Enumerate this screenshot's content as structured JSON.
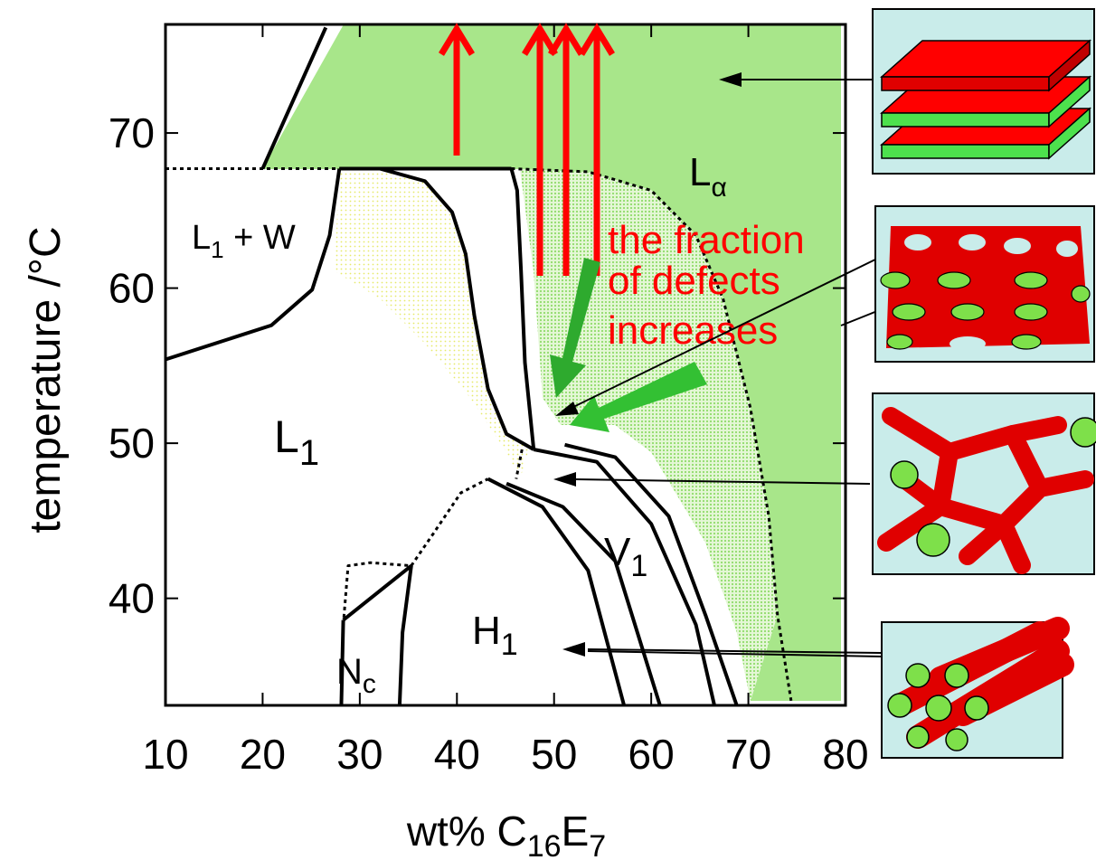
{
  "chart_data": {
    "type": "phase-diagram",
    "xlabel": [
      "wt% C",
      "16",
      "E",
      "7"
    ],
    "ylabel": "temperature /°C",
    "xlim": [
      10,
      80
    ],
    "ylim": [
      33.1,
      77
    ],
    "xticks": [
      10,
      20,
      30,
      40,
      50,
      60,
      70,
      80
    ],
    "yticks": [
      40,
      50,
      60,
      70
    ],
    "regions": [
      [
        "L",
        "1",
        " + W"
      ],
      [
        "L",
        "1"
      ],
      [
        "L",
        "α"
      ],
      [
        "V",
        "1"
      ],
      [
        "H",
        "1"
      ],
      [
        "N",
        "c"
      ]
    ],
    "annotation": [
      "the fraction",
      "of defects",
      "increases"
    ],
    "curves": [
      {
        "style": "dotted",
        "x": [
          10,
          27.9
        ],
        "y": [
          67.7,
          67.7
        ]
      },
      {
        "style": "solid",
        "x": [
          20.0,
          26.5
        ],
        "y": [
          67.7,
          76.8
        ]
      },
      {
        "style": "solid",
        "x": [
          10,
          20.9,
          25.1,
          26.9,
          27.9
        ],
        "y": [
          55.4,
          57.6,
          59.9,
          63.4,
          67.7
        ]
      },
      {
        "style": "solid",
        "x": [
          27.9,
          45.6
        ],
        "y": [
          67.7,
          67.7
        ]
      },
      {
        "style": "solid",
        "x": [
          32.1,
          36.7,
          39.5,
          40.9,
          41.8,
          43.2,
          45.1,
          47.9
        ],
        "y": [
          67.7,
          66.9,
          64.9,
          62.2,
          58.2,
          53.5,
          50.6,
          49.6
        ]
      },
      {
        "style": "solid",
        "x": [
          45.6,
          46.2,
          46.6,
          47.0,
          47.9
        ],
        "y": [
          67.7,
          66.3,
          61.1,
          55.2,
          49.6
        ]
      },
      {
        "style": "dotted",
        "x": [
          45.6,
          53.5,
          60.0,
          64.6,
          67.4,
          70.2,
          72.1,
          73.0,
          74.4
        ],
        "y": [
          67.7,
          67.5,
          66.3,
          63.4,
          59.3,
          52.3,
          45.3,
          38.9,
          33.4
        ]
      },
      {
        "style": "solid",
        "x": [
          43.2,
          48.8,
          53.5,
          57.2
        ],
        "y": [
          47.7,
          45.9,
          41.8,
          33.1
        ]
      },
      {
        "style": "dotted",
        "x": [
          35.3,
          37.6,
          40.4,
          43.2
        ],
        "y": [
          42.1,
          44.2,
          46.8,
          47.7
        ]
      },
      {
        "style": "solid",
        "x": [
          35.3,
          34.4,
          34.1
        ],
        "y": [
          42.1,
          37.8,
          33.1
        ]
      },
      {
        "style": "solid",
        "x": [
          45.1,
          50.9,
          56.3,
          60.9
        ],
        "y": [
          47.4,
          45.9,
          42.4,
          33.1
        ]
      },
      {
        "style": "solid",
        "x": [
          47.9,
          54.4,
          60.0,
          64.6,
          66.5
        ],
        "y": [
          49.6,
          48.8,
          44.8,
          38.3,
          33.1
        ]
      },
      {
        "style": "solid",
        "x": [
          51.1,
          56.3,
          61.8,
          65.6,
          68.8
        ],
        "y": [
          49.9,
          49.1,
          45.3,
          38.9,
          33.1
        ]
      },
      {
        "style": "dotted",
        "x": [
          28.3,
          28.8,
          31.1,
          35.3
        ],
        "y": [
          38.3,
          42.1,
          42.3,
          42.1
        ]
      },
      {
        "style": "solid",
        "x": [
          28.3,
          35.3
        ],
        "y": [
          38.6,
          42.1
        ]
      },
      {
        "style": "solid",
        "x": [
          28.3,
          28.1
        ],
        "y": [
          38.6,
          33.1
        ]
      },
      {
        "style": "dotted",
        "x": [
          46.7,
          46.1
        ],
        "y": [
          49.6,
          47.7
        ]
      }
    ]
  }
}
